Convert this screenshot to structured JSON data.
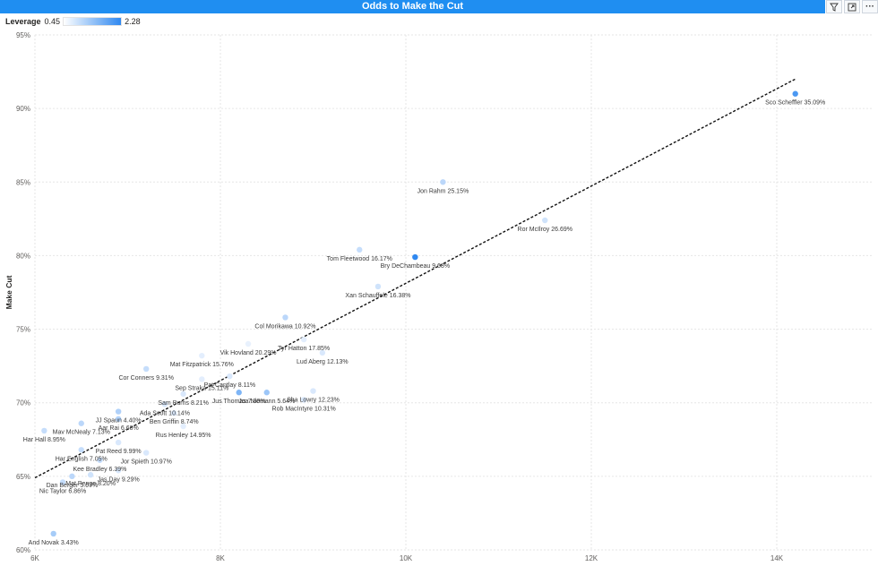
{
  "title": "Odds to Make the Cut",
  "toolbar": {
    "icons": [
      "filter-icon",
      "focus-mode-icon",
      "more-options-icon"
    ],
    "more_glyph": "···"
  },
  "legend": {
    "title": "Leverage",
    "min": "0.45",
    "max": "2.28",
    "color_low": "#ffffff",
    "color_high": "#2f88f0"
  },
  "chart_data": {
    "type": "scatter",
    "ylabel": "Make Cut",
    "xlabel": "",
    "x_ticks": [
      "6K",
      "8K",
      "10K",
      "12K",
      "14K"
    ],
    "x_tick_values": [
      6000,
      8000,
      10000,
      12000,
      14000
    ],
    "y_ticks": [
      "60%",
      "65%",
      "70%",
      "75%",
      "80%",
      "85%",
      "90%",
      "95%"
    ],
    "y_tick_values": [
      60,
      65,
      70,
      75,
      80,
      85,
      90,
      95
    ],
    "xlim": [
      6000,
      15000
    ],
    "ylim": [
      60,
      95
    ],
    "grid": true,
    "trend_line": {
      "from": [
        6000,
        64.9
      ],
      "to": [
        14200,
        92.0
      ],
      "style": "dashed"
    },
    "point_color": "#2f88f0",
    "points": [
      {
        "label": "Sco Scheffler 35.09%",
        "x": 14200,
        "y": 91.0,
        "leverage": 2.0
      },
      {
        "label": "Jon Rahm 25.15%",
        "x": 10400,
        "y": 85.0,
        "leverage": 0.9
      },
      {
        "label": "Ror McIlroy 26.69%",
        "x": 11500,
        "y": 82.4,
        "leverage": 0.7
      },
      {
        "label": "Tom Fleetwood 16.17%",
        "x": 9500,
        "y": 80.4,
        "leverage": 0.8
      },
      {
        "label": "Bry DeChambeau 9.68%",
        "x": 10100,
        "y": 79.9,
        "leverage": 2.28
      },
      {
        "label": "Xan Schauffele 16.38%",
        "x": 9700,
        "y": 77.9,
        "leverage": 0.7
      },
      {
        "label": "Col Morikawa 10.92%",
        "x": 8700,
        "y": 75.8,
        "leverage": 0.9
      },
      {
        "label": "Tyr Hatton 17.85%",
        "x": 8900,
        "y": 74.3,
        "leverage": 0.5
      },
      {
        "label": "Vik Hovland 20.29%",
        "x": 8300,
        "y": 74.0,
        "leverage": 0.45
      },
      {
        "label": "Lud Aberg 12.13%",
        "x": 9100,
        "y": 73.4,
        "leverage": 0.6
      },
      {
        "label": "Mat Fitzpatrick 15.76%",
        "x": 7800,
        "y": 73.2,
        "leverage": 0.5
      },
      {
        "label": "Cor Conners 9.31%",
        "x": 7200,
        "y": 72.3,
        "leverage": 0.8
      },
      {
        "label": "Sep Straka 15.11%",
        "x": 7800,
        "y": 71.6,
        "leverage": 0.5
      },
      {
        "label": "Pat Cantlay 8.11%",
        "x": 8100,
        "y": 71.8,
        "leverage": 0.6
      },
      {
        "label": "Sha Lowry 12.23%",
        "x": 9000,
        "y": 70.8,
        "leverage": 0.6
      },
      {
        "label": "Jus Thomas 7.80%",
        "x": 8200,
        "y": 70.7,
        "leverage": 1.5
      },
      {
        "label": "Sam Burns 8.21%",
        "x": 7600,
        "y": 70.6,
        "leverage": 0.6
      },
      {
        "label": "Joa Niemann 5.64%",
        "x": 8500,
        "y": 70.7,
        "leverage": 1.2
      },
      {
        "label": "Rob MacIntyre 10.31%",
        "x": 8900,
        "y": 70.2,
        "leverage": 0.6
      },
      {
        "label": "Ada Scott 10.14%",
        "x": 7400,
        "y": 69.9,
        "leverage": 0.6
      },
      {
        "label": "JJ Spaun 4.40%",
        "x": 6900,
        "y": 69.4,
        "leverage": 1.0
      },
      {
        "label": "Ben Griffin 8.74%",
        "x": 7500,
        "y": 69.3,
        "leverage": 0.6
      },
      {
        "label": "Aar Rai 6.68%",
        "x": 6900,
        "y": 68.9,
        "leverage": 1.0
      },
      {
        "label": "Rus Henley 14.95%",
        "x": 7600,
        "y": 68.4,
        "leverage": 0.5
      },
      {
        "label": "Har Hall 8.95%",
        "x": 6100,
        "y": 68.1,
        "leverage": 0.8
      },
      {
        "label": "Mav McNealy 7.13%",
        "x": 6500,
        "y": 68.6,
        "leverage": 0.9
      },
      {
        "label": "Pat Reed 9.99%",
        "x": 6900,
        "y": 67.3,
        "leverage": 0.6
      },
      {
        "label": "Jor Spieth 10.97%",
        "x": 7200,
        "y": 66.6,
        "leverage": 0.6
      },
      {
        "label": "Har English 7.05%",
        "x": 6500,
        "y": 66.8,
        "leverage": 0.8
      },
      {
        "label": "Kee Bradley 6.39%",
        "x": 6700,
        "y": 66.1,
        "leverage": 0.8
      },
      {
        "label": "Jas Day 9.29%",
        "x": 6900,
        "y": 65.4,
        "leverage": 0.6
      },
      {
        "label": "Mat Penge 8.20%",
        "x": 6600,
        "y": 65.1,
        "leverage": 0.7
      },
      {
        "label": "Dan Berger 5.67%",
        "x": 6400,
        "y": 65.0,
        "leverage": 0.9
      },
      {
        "label": "Nic Taylor 6.86%",
        "x": 6300,
        "y": 64.6,
        "leverage": 0.8
      },
      {
        "label": "And Novak 3.43%",
        "x": 6200,
        "y": 61.1,
        "leverage": 1.1
      }
    ]
  }
}
